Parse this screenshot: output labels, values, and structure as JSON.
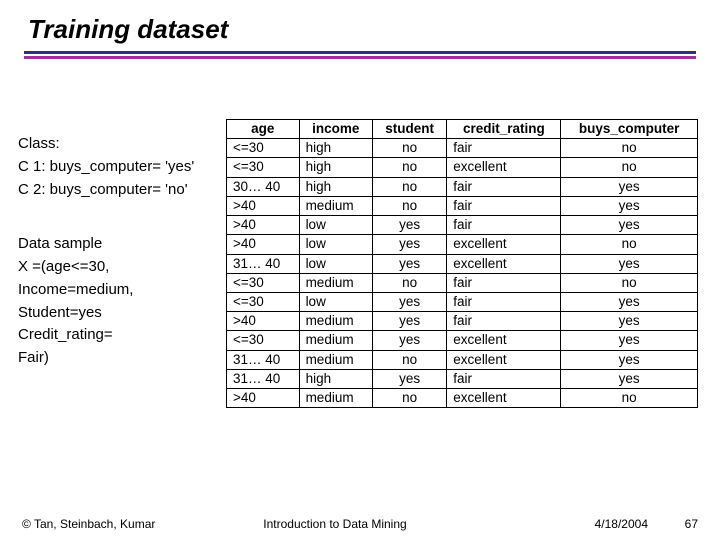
{
  "title": "Training dataset",
  "rule_colors": {
    "top": "#2f2f8f",
    "bottom": "#a0309f"
  },
  "left": {
    "block1": [
      "Class:",
      "C 1: buys_computer= 'yes'",
      "C 2: buys_computer= 'no'"
    ],
    "block2": [
      "Data sample",
      "X =(age<=30,",
      "Income=medium,",
      "Student=yes",
      "Credit_rating=",
      "Fair)"
    ]
  },
  "table": {
    "columns": [
      "age",
      "income",
      "student",
      "credit_rating",
      "buys_computer"
    ],
    "center_cols": [
      false,
      false,
      true,
      false,
      true
    ],
    "rows": [
      [
        "<=30",
        "high",
        "no",
        "fair",
        "no"
      ],
      [
        "<=30",
        "high",
        "no",
        "excellent",
        "no"
      ],
      [
        "30… 40",
        "high",
        "no",
        "fair",
        "yes"
      ],
      [
        ">40",
        "medium",
        "no",
        "fair",
        "yes"
      ],
      [
        ">40",
        "low",
        "yes",
        "fair",
        "yes"
      ],
      [
        ">40",
        "low",
        "yes",
        "excellent",
        "no"
      ],
      [
        "31… 40",
        "low",
        "yes",
        "excellent",
        "yes"
      ],
      [
        "<=30",
        "medium",
        "no",
        "fair",
        "no"
      ],
      [
        "<=30",
        "low",
        "yes",
        "fair",
        "yes"
      ],
      [
        ">40",
        "medium",
        "yes",
        "fair",
        "yes"
      ],
      [
        "<=30",
        "medium",
        "yes",
        "excellent",
        "yes"
      ],
      [
        "31… 40",
        "medium",
        "no",
        "excellent",
        "yes"
      ],
      [
        "31… 40",
        "high",
        "yes",
        "fair",
        "yes"
      ],
      [
        ">40",
        "medium",
        "no",
        "excellent",
        "no"
      ]
    ]
  },
  "footer": {
    "copyright": "© Tan, Steinbach, Kumar",
    "center": "Introduction to Data Mining",
    "date": "4/18/2004",
    "page": "67"
  }
}
